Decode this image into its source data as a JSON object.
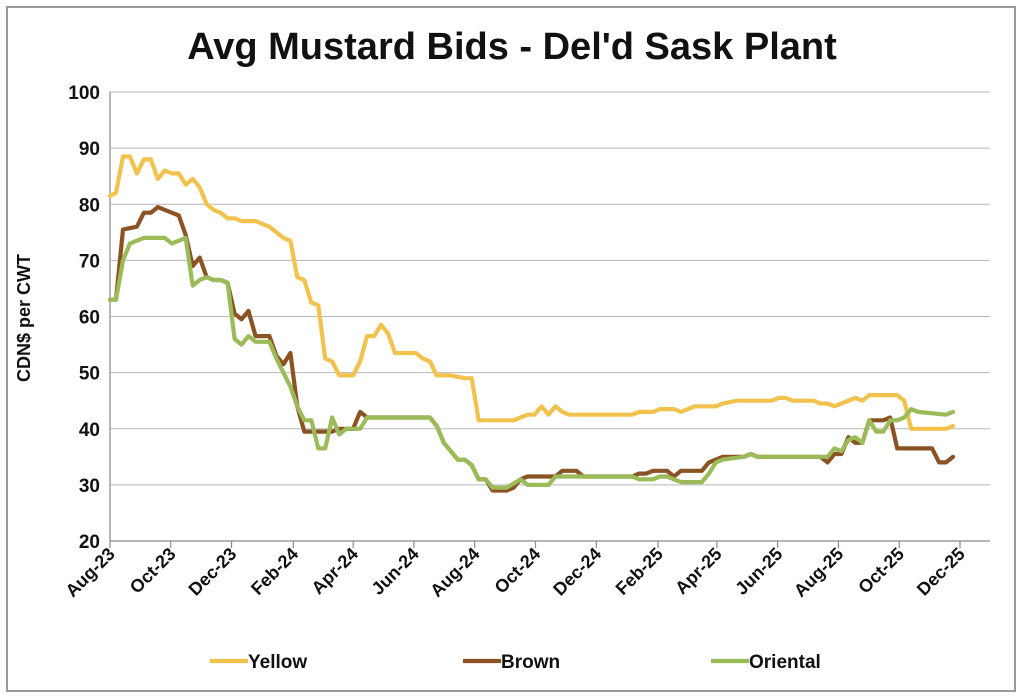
{
  "chart_data": {
    "type": "line",
    "title": "Avg Mustard Bids - Del'd Sask Plant",
    "xlabel": "",
    "ylabel": "CDN$ per CWT",
    "ylim": [
      20,
      100
    ],
    "yticks": [
      20,
      30,
      40,
      50,
      60,
      70,
      80,
      90,
      100
    ],
    "grid": true,
    "legend_position": "bottom",
    "x_tick_labels": [
      "Aug-23",
      "Oct-23",
      "Dec-23",
      "Feb-24",
      "Apr-24",
      "Jun-24",
      "Aug-24",
      "Oct-24",
      "Dec-24",
      "Feb-25",
      "Apr-25",
      "Jun-25",
      "Aug-25",
      "Oct-25",
      "Dec-25"
    ],
    "series": [
      {
        "name": "Yellow",
        "color": "#F2C24F",
        "points": [
          [
            "2023-08-01",
            81.5
          ],
          [
            "2023-08-07",
            82
          ],
          [
            "2023-08-14",
            88.5
          ],
          [
            "2023-08-21",
            88.5
          ],
          [
            "2023-08-28",
            85.5
          ],
          [
            "2023-09-04",
            88
          ],
          [
            "2023-09-11",
            88
          ],
          [
            "2023-09-18",
            84.5
          ],
          [
            "2023-09-25",
            86
          ],
          [
            "2023-10-02",
            85.5
          ],
          [
            "2023-10-09",
            85.5
          ],
          [
            "2023-10-16",
            83.5
          ],
          [
            "2023-10-23",
            84.5
          ],
          [
            "2023-10-30",
            83
          ],
          [
            "2023-11-06",
            80
          ],
          [
            "2023-11-13",
            79
          ],
          [
            "2023-11-20",
            78.5
          ],
          [
            "2023-11-27",
            77.5
          ],
          [
            "2023-12-04",
            77.5
          ],
          [
            "2023-12-11",
            77
          ],
          [
            "2023-12-18",
            77
          ],
          [
            "2023-12-25",
            77
          ],
          [
            "2024-01-01",
            76.5
          ],
          [
            "2024-01-08",
            76
          ],
          [
            "2024-01-15",
            75
          ],
          [
            "2024-01-22",
            74
          ],
          [
            "2024-01-29",
            73.5
          ],
          [
            "2024-02-05",
            67
          ],
          [
            "2024-02-12",
            66.5
          ],
          [
            "2024-02-19",
            62.5
          ],
          [
            "2024-02-26",
            62
          ],
          [
            "2024-03-04",
            52.5
          ],
          [
            "2024-03-11",
            52
          ],
          [
            "2024-03-18",
            49.5
          ],
          [
            "2024-03-25",
            49.5
          ],
          [
            "2024-04-01",
            49.5
          ],
          [
            "2024-04-08",
            52
          ],
          [
            "2024-04-15",
            56.5
          ],
          [
            "2024-04-22",
            56.5
          ],
          [
            "2024-04-29",
            58.5
          ],
          [
            "2024-05-06",
            57
          ],
          [
            "2024-05-13",
            53.5
          ],
          [
            "2024-05-20",
            53.5
          ],
          [
            "2024-06-03",
            53.5
          ],
          [
            "2024-06-10",
            52.5
          ],
          [
            "2024-06-17",
            52
          ],
          [
            "2024-06-24",
            49.5
          ],
          [
            "2024-07-08",
            49.5
          ],
          [
            "2024-07-22",
            49
          ],
          [
            "2024-07-29",
            49
          ],
          [
            "2024-08-05",
            41.5
          ],
          [
            "2024-08-19",
            41.5
          ],
          [
            "2024-09-09",
            41.5
          ],
          [
            "2024-09-16",
            42
          ],
          [
            "2024-09-23",
            42.5
          ],
          [
            "2024-09-30",
            42.5
          ],
          [
            "2024-10-07",
            44
          ],
          [
            "2024-10-14",
            42.5
          ],
          [
            "2024-10-21",
            44
          ],
          [
            "2024-10-28",
            43
          ],
          [
            "2024-11-04",
            42.5
          ],
          [
            "2024-12-02",
            42.5
          ],
          [
            "2025-01-06",
            42.5
          ],
          [
            "2025-01-13",
            43
          ],
          [
            "2025-01-27",
            43
          ],
          [
            "2025-02-03",
            43.5
          ],
          [
            "2025-02-17",
            43.5
          ],
          [
            "2025-02-24",
            43
          ],
          [
            "2025-03-03",
            43.5
          ],
          [
            "2025-03-10",
            44
          ],
          [
            "2025-03-31",
            44
          ],
          [
            "2025-04-07",
            44.5
          ],
          [
            "2025-04-21",
            45
          ],
          [
            "2025-05-26",
            45
          ],
          [
            "2025-06-02",
            45.5
          ],
          [
            "2025-06-09",
            45.5
          ],
          [
            "2025-06-16",
            45
          ],
          [
            "2025-07-07",
            45
          ],
          [
            "2025-07-14",
            44.5
          ],
          [
            "2025-07-21",
            44.5
          ],
          [
            "2025-07-28",
            44
          ],
          [
            "2025-08-04",
            44.5
          ],
          [
            "2025-08-11",
            45
          ],
          [
            "2025-08-18",
            45.5
          ],
          [
            "2025-08-25",
            45
          ],
          [
            "2025-09-01",
            46
          ],
          [
            "2025-09-29",
            46
          ],
          [
            "2025-10-06",
            45
          ],
          [
            "2025-10-13",
            40
          ],
          [
            "2025-11-17",
            40
          ],
          [
            "2025-11-24",
            40.5
          ]
        ]
      },
      {
        "name": "Brown",
        "color": "#8B5224",
        "points": [
          [
            "2023-08-01",
            63
          ],
          [
            "2023-08-07",
            63
          ],
          [
            "2023-08-14",
            75.5
          ],
          [
            "2023-08-28",
            76
          ],
          [
            "2023-09-04",
            78.5
          ],
          [
            "2023-09-11",
            78.5
          ],
          [
            "2023-09-18",
            79.5
          ],
          [
            "2023-09-25",
            79
          ],
          [
            "2023-10-02",
            78.5
          ],
          [
            "2023-10-09",
            78
          ],
          [
            "2023-10-16",
            74.5
          ],
          [
            "2023-10-23",
            69
          ],
          [
            "2023-10-30",
            70.5
          ],
          [
            "2023-11-06",
            67
          ],
          [
            "2023-11-13",
            66.5
          ],
          [
            "2023-11-20",
            66.5
          ],
          [
            "2023-11-27",
            66
          ],
          [
            "2023-12-04",
            60.5
          ],
          [
            "2023-12-11",
            59.5
          ],
          [
            "2023-12-18",
            61
          ],
          [
            "2023-12-25",
            56.5
          ],
          [
            "2024-01-08",
            56.5
          ],
          [
            "2024-01-15",
            53
          ],
          [
            "2024-01-22",
            51.5
          ],
          [
            "2024-01-29",
            53.5
          ],
          [
            "2024-02-05",
            44
          ],
          [
            "2024-02-12",
            39.5
          ],
          [
            "2024-03-11",
            39.5
          ],
          [
            "2024-03-18",
            40
          ],
          [
            "2024-03-25",
            40
          ],
          [
            "2024-04-01",
            40
          ],
          [
            "2024-04-08",
            43
          ],
          [
            "2024-04-15",
            42
          ],
          [
            "2024-06-17",
            42
          ],
          [
            "2024-06-24",
            40.5
          ],
          [
            "2024-07-01",
            37.5
          ],
          [
            "2024-07-08",
            36
          ],
          [
            "2024-07-15",
            34.5
          ],
          [
            "2024-07-22",
            34.5
          ],
          [
            "2024-07-29",
            33.5
          ],
          [
            "2024-08-05",
            31
          ],
          [
            "2024-08-12",
            31
          ],
          [
            "2024-08-19",
            29
          ],
          [
            "2024-08-26",
            29
          ],
          [
            "2024-09-02",
            29
          ],
          [
            "2024-09-09",
            29.5
          ],
          [
            "2024-09-16",
            31
          ],
          [
            "2024-09-23",
            31.5
          ],
          [
            "2024-10-21",
            31.5
          ],
          [
            "2024-10-28",
            32.5
          ],
          [
            "2024-11-11",
            32.5
          ],
          [
            "2024-11-18",
            31.5
          ],
          [
            "2025-01-06",
            31.5
          ],
          [
            "2025-01-13",
            32
          ],
          [
            "2025-01-20",
            32
          ],
          [
            "2025-01-27",
            32.5
          ],
          [
            "2025-02-10",
            32.5
          ],
          [
            "2025-02-17",
            31.5
          ],
          [
            "2025-02-24",
            32.5
          ],
          [
            "2025-03-17",
            32.5
          ],
          [
            "2025-03-24",
            34
          ],
          [
            "2025-03-31",
            34.5
          ],
          [
            "2025-04-07",
            35
          ],
          [
            "2025-04-28",
            35
          ],
          [
            "2025-05-05",
            35.5
          ],
          [
            "2025-05-12",
            35
          ],
          [
            "2025-07-14",
            35
          ],
          [
            "2025-07-21",
            34
          ],
          [
            "2025-07-28",
            35.5
          ],
          [
            "2025-08-04",
            35.5
          ],
          [
            "2025-08-11",
            38.5
          ],
          [
            "2025-08-18",
            37.5
          ],
          [
            "2025-08-25",
            37.5
          ],
          [
            "2025-09-01",
            41.5
          ],
          [
            "2025-09-15",
            41.5
          ],
          [
            "2025-09-22",
            42
          ],
          [
            "2025-09-29",
            36.5
          ],
          [
            "2025-10-27",
            36.5
          ],
          [
            "2025-11-03",
            36.5
          ],
          [
            "2025-11-10",
            34
          ],
          [
            "2025-11-17",
            34
          ],
          [
            "2025-11-24",
            35
          ]
        ]
      },
      {
        "name": "Oriental",
        "color": "#9BBB59",
        "points": [
          [
            "2023-08-01",
            63
          ],
          [
            "2023-08-07",
            63
          ],
          [
            "2023-08-14",
            70
          ],
          [
            "2023-08-21",
            73
          ],
          [
            "2023-08-28",
            73.5
          ],
          [
            "2023-09-04",
            74
          ],
          [
            "2023-09-25",
            74
          ],
          [
            "2023-10-02",
            73
          ],
          [
            "2023-10-09",
            73.5
          ],
          [
            "2023-10-16",
            74
          ],
          [
            "2023-10-23",
            65.5
          ],
          [
            "2023-10-30",
            66.5
          ],
          [
            "2023-11-06",
            67
          ],
          [
            "2023-11-13",
            66.5
          ],
          [
            "2023-11-20",
            66.5
          ],
          [
            "2023-11-27",
            66
          ],
          [
            "2023-12-04",
            56
          ],
          [
            "2023-12-11",
            55
          ],
          [
            "2023-12-18",
            56.5
          ],
          [
            "2023-12-25",
            55.5
          ],
          [
            "2024-01-08",
            55.5
          ],
          [
            "2024-01-15",
            52.5
          ],
          [
            "2024-01-22",
            50
          ],
          [
            "2024-01-29",
            47.5
          ],
          [
            "2024-02-05",
            44
          ],
          [
            "2024-02-12",
            41.5
          ],
          [
            "2024-02-19",
            41.5
          ],
          [
            "2024-02-26",
            36.5
          ],
          [
            "2024-03-04",
            36.5
          ],
          [
            "2024-03-11",
            42
          ],
          [
            "2024-03-18",
            39
          ],
          [
            "2024-03-25",
            40
          ],
          [
            "2024-04-08",
            40
          ],
          [
            "2024-04-15",
            42
          ],
          [
            "2024-06-17",
            42
          ],
          [
            "2024-06-24",
            40.5
          ],
          [
            "2024-07-01",
            37.5
          ],
          [
            "2024-07-08",
            36
          ],
          [
            "2024-07-15",
            34.5
          ],
          [
            "2024-07-22",
            34.5
          ],
          [
            "2024-07-29",
            33.5
          ],
          [
            "2024-08-05",
            31
          ],
          [
            "2024-08-12",
            31
          ],
          [
            "2024-08-19",
            29.5
          ],
          [
            "2024-08-26",
            29.5
          ],
          [
            "2024-09-02",
            29.5
          ],
          [
            "2024-09-16",
            31
          ],
          [
            "2024-09-23",
            30
          ],
          [
            "2024-10-07",
            30
          ],
          [
            "2024-10-14",
            30
          ],
          [
            "2024-10-21",
            31.5
          ],
          [
            "2024-10-28",
            31.5
          ],
          [
            "2025-01-06",
            31.5
          ],
          [
            "2025-01-13",
            31
          ],
          [
            "2025-01-27",
            31
          ],
          [
            "2025-02-03",
            31.5
          ],
          [
            "2025-02-10",
            31.5
          ],
          [
            "2025-02-17",
            31
          ],
          [
            "2025-02-24",
            30.5
          ],
          [
            "2025-03-17",
            30.5
          ],
          [
            "2025-03-24",
            32
          ],
          [
            "2025-03-31",
            34
          ],
          [
            "2025-04-07",
            34.5
          ],
          [
            "2025-04-28",
            35
          ],
          [
            "2025-05-05",
            35.5
          ],
          [
            "2025-05-12",
            35
          ],
          [
            "2025-07-21",
            35
          ],
          [
            "2025-07-28",
            36.5
          ],
          [
            "2025-08-04",
            36
          ],
          [
            "2025-08-11",
            38
          ],
          [
            "2025-08-18",
            38.5
          ],
          [
            "2025-08-25",
            37.5
          ],
          [
            "2025-09-01",
            41.5
          ],
          [
            "2025-09-08",
            39.5
          ],
          [
            "2025-09-15",
            39.5
          ],
          [
            "2025-09-22",
            41.5
          ],
          [
            "2025-09-29",
            41.5
          ],
          [
            "2025-10-06",
            42
          ],
          [
            "2025-10-13",
            43.5
          ],
          [
            "2025-10-20",
            43
          ],
          [
            "2025-11-17",
            42.5
          ],
          [
            "2025-11-24",
            43
          ]
        ]
      }
    ]
  }
}
